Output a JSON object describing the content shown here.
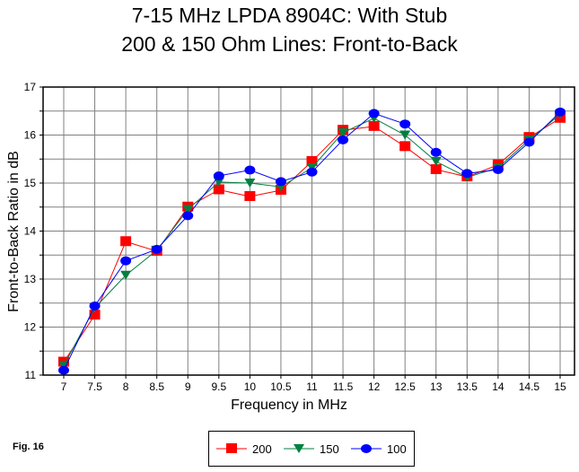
{
  "chart_data": {
    "type": "line",
    "title": "7-15 MHz LPDA 8904C:  With Stub",
    "subtitle": "200 & 150 Ohm Lines:  Front-to-Back",
    "xlabel": "Frequency in MHz",
    "ylabel": "Front-to-Back Ratio in dB",
    "xlim": [
      7,
      15
    ],
    "ylim": [
      11,
      17
    ],
    "grid": true,
    "legend_position": "bottom",
    "x": [
      7,
      7.5,
      8,
      8.5,
      9,
      9.5,
      10,
      10.5,
      11,
      11.5,
      12,
      12.5,
      13,
      13.5,
      14,
      14.5,
      15
    ],
    "x_tick_labels": [
      "7",
      "7.5",
      "8",
      "8.5",
      "9",
      "9.5",
      "10",
      "10.5",
      "11",
      "11.5",
      "12",
      "12.5",
      "13",
      "13.5",
      "14",
      "14.5",
      "15"
    ],
    "y_tick_labels": [
      "11",
      "12",
      "13",
      "14",
      "15",
      "16",
      "17"
    ],
    "series": [
      {
        "name": "200",
        "color": "#ff0000",
        "marker": "square",
        "values": [
          11.27,
          12.25,
          13.78,
          13.58,
          14.5,
          14.86,
          14.72,
          14.85,
          15.45,
          16.1,
          16.18,
          15.76,
          15.28,
          15.13,
          15.38,
          15.95,
          16.35
        ]
      },
      {
        "name": "150",
        "color": "#008040",
        "marker": "triangle-down",
        "values": [
          11.2,
          12.4,
          13.08,
          13.6,
          14.45,
          15.02,
          15.0,
          14.92,
          15.32,
          16.05,
          16.35,
          16.0,
          15.45,
          15.12,
          15.32,
          15.9,
          16.43
        ]
      },
      {
        "name": "100",
        "color": "#0000ff",
        "marker": "circle",
        "values": [
          11.1,
          12.44,
          13.38,
          13.62,
          14.32,
          15.15,
          15.27,
          15.03,
          15.23,
          15.9,
          16.45,
          16.23,
          15.64,
          15.2,
          15.28,
          15.85,
          16.48
        ]
      }
    ]
  },
  "figure_label": "Fig. 16"
}
